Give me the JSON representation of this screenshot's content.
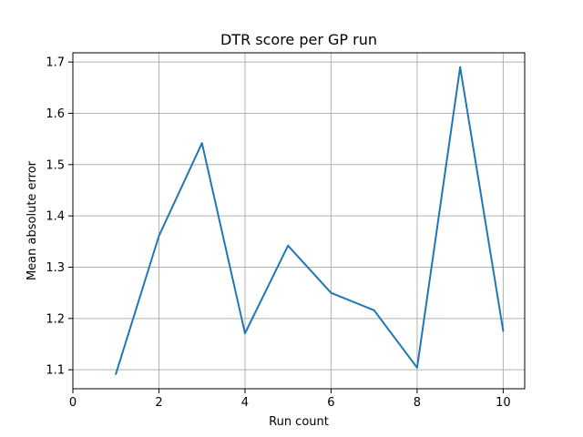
{
  "chart_data": {
    "type": "line",
    "title": "DTR score per GP run",
    "xlabel": "Run count",
    "ylabel": "Mean absolute error",
    "xlim": [
      0,
      10.5
    ],
    "ylim": [
      1.063,
      1.718
    ],
    "xticks": [
      0,
      2,
      4,
      6,
      8,
      10
    ],
    "yticks": [
      1.1,
      1.2,
      1.3,
      1.4,
      1.5,
      1.6,
      1.7
    ],
    "xtick_labels": [
      "0",
      "2",
      "4",
      "6",
      "8",
      "10"
    ],
    "ytick_labels": [
      "1.1",
      "1.2",
      "1.3",
      "1.4",
      "1.5",
      "1.6",
      "1.7"
    ],
    "grid": true,
    "series": [
      {
        "color": "#1f77b4",
        "x": [
          1,
          2,
          3,
          4,
          5,
          6,
          7,
          8,
          9,
          10
        ],
        "y": [
          1.092,
          1.361,
          1.542,
          1.171,
          1.342,
          1.25,
          1.216,
          1.104,
          1.69,
          1.176
        ]
      }
    ]
  }
}
